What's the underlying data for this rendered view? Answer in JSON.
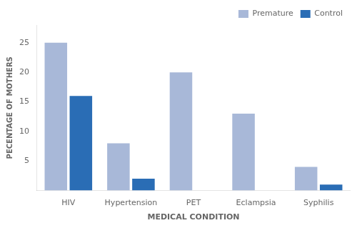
{
  "chart_data": {
    "type": "bar",
    "categories": [
      "HIV",
      "Hypertension",
      "PET",
      "Eclampsia",
      "Syphilis"
    ],
    "series": [
      {
        "name": "Premature",
        "color": "#a8b8d8",
        "values": [
          25,
          8,
          20,
          13,
          4
        ]
      },
      {
        "name": "Control",
        "color": "#2a6db5",
        "values": [
          16,
          2,
          0,
          0,
          1
        ]
      }
    ],
    "xlabel": "MEDICAL CONDITION",
    "ylabel": "PECENTAGE OF MOTHERS",
    "ylim": [
      0,
      28
    ],
    "yticks": [
      5,
      10,
      15,
      20,
      25
    ],
    "grid": false,
    "legend": "upper right"
  }
}
